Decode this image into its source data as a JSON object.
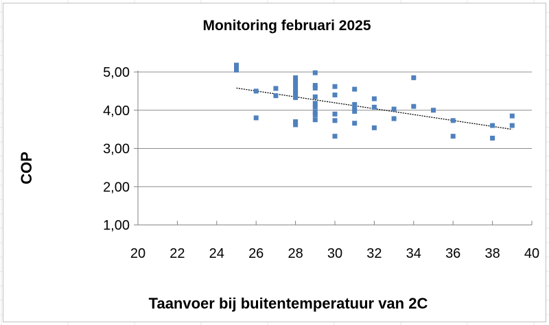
{
  "chart_data": {
    "type": "scatter",
    "title": "Monitoring februari 2025",
    "xlabel": "Taanvoer bij buitentemperatuur van 2C",
    "ylabel": "COP",
    "xlim": [
      20,
      40
    ],
    "ylim": [
      1,
      5
    ],
    "x_ticks": [
      "20",
      "22",
      "24",
      "26",
      "28",
      "30",
      "32",
      "34",
      "36",
      "38",
      "40"
    ],
    "y_ticks": [
      "1,00",
      "2,00",
      "3,00",
      "4,00",
      "5,00"
    ],
    "grid": "horizontal",
    "legend": "none",
    "marker_color": "#4f81bd",
    "trendline": {
      "type": "linear",
      "from": [
        25,
        4.58
      ],
      "to": [
        39,
        3.5
      ],
      "color": "#000000"
    },
    "points": [
      {
        "x": 25,
        "y": 5.18
      },
      {
        "x": 25,
        "y": 5.12
      },
      {
        "x": 25,
        "y": 5.05
      },
      {
        "x": 26,
        "y": 4.5
      },
      {
        "x": 26,
        "y": 3.8
      },
      {
        "x": 27,
        "y": 4.57
      },
      {
        "x": 27,
        "y": 4.38
      },
      {
        "x": 28,
        "y": 4.85
      },
      {
        "x": 28,
        "y": 4.75
      },
      {
        "x": 28,
        "y": 4.65
      },
      {
        "x": 28,
        "y": 4.55
      },
      {
        "x": 28,
        "y": 4.48
      },
      {
        "x": 28,
        "y": 4.4
      },
      {
        "x": 28,
        "y": 4.33
      },
      {
        "x": 28,
        "y": 3.7
      },
      {
        "x": 28,
        "y": 3.62
      },
      {
        "x": 29,
        "y": 4.98
      },
      {
        "x": 29,
        "y": 4.65
      },
      {
        "x": 29,
        "y": 4.58
      },
      {
        "x": 29,
        "y": 4.35
      },
      {
        "x": 29,
        "y": 4.18
      },
      {
        "x": 29,
        "y": 4.08
      },
      {
        "x": 29,
        "y": 3.95
      },
      {
        "x": 29,
        "y": 3.88
      },
      {
        "x": 29,
        "y": 3.75
      },
      {
        "x": 30,
        "y": 4.62
      },
      {
        "x": 30,
        "y": 4.4
      },
      {
        "x": 30,
        "y": 3.9
      },
      {
        "x": 30,
        "y": 3.73
      },
      {
        "x": 30,
        "y": 3.32
      },
      {
        "x": 31,
        "y": 4.55
      },
      {
        "x": 31,
        "y": 4.15
      },
      {
        "x": 31,
        "y": 4.05
      },
      {
        "x": 31,
        "y": 3.97
      },
      {
        "x": 31,
        "y": 3.66
      },
      {
        "x": 32,
        "y": 4.3
      },
      {
        "x": 32,
        "y": 4.08
      },
      {
        "x": 32,
        "y": 3.54
      },
      {
        "x": 33,
        "y": 4.03
      },
      {
        "x": 33,
        "y": 3.78
      },
      {
        "x": 34,
        "y": 4.85
      },
      {
        "x": 34,
        "y": 4.1
      },
      {
        "x": 35,
        "y": 4.0
      },
      {
        "x": 36,
        "y": 3.73
      },
      {
        "x": 36,
        "y": 3.32
      },
      {
        "x": 38,
        "y": 3.6
      },
      {
        "x": 38,
        "y": 3.27
      },
      {
        "x": 39,
        "y": 3.85
      },
      {
        "x": 39,
        "y": 3.6
      }
    ]
  }
}
